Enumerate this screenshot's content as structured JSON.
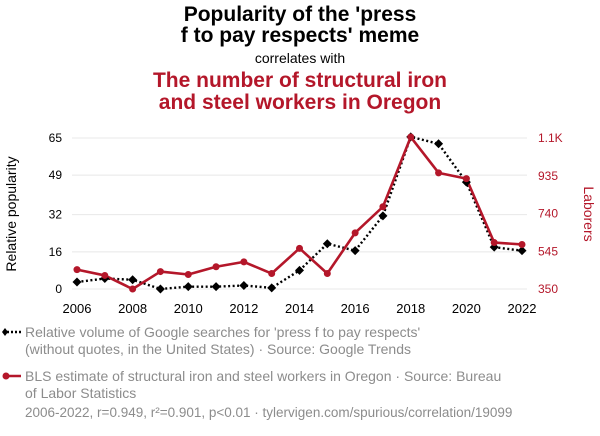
{
  "header": {
    "title_line1": "Popularity of the 'press",
    "title_line2": "f to pay respects' meme",
    "subtitle": "correlates with",
    "title2_line1": "The number of structural iron",
    "title2_line2": "and steel workers in Oregon"
  },
  "colors": {
    "series1": "#000000",
    "series2": "#b4172a",
    "grid": "#e8e8e8"
  },
  "chart_data": {
    "type": "line",
    "x": [
      2006,
      2007,
      2008,
      2009,
      2010,
      2011,
      2012,
      2013,
      2014,
      2015,
      2016,
      2017,
      2018,
      2019,
      2020,
      2021,
      2022
    ],
    "x_ticks": [
      "2006",
      "2008",
      "2010",
      "2012",
      "2014",
      "2016",
      "2018",
      "2020",
      "2022"
    ],
    "left_axis": {
      "label": "Relative popularity",
      "ticks": [
        "65",
        "49",
        "32",
        "16",
        "0"
      ],
      "tick_values": [
        65,
        49,
        32,
        16,
        0
      ],
      "ylim": [
        0,
        65
      ]
    },
    "right_axis": {
      "label": "Laborers",
      "ticks": [
        "1.1K",
        "935",
        "740",
        "545",
        "350"
      ],
      "tick_values": [
        1130,
        935,
        740,
        545,
        350
      ],
      "ylim": [
        350,
        1130
      ]
    },
    "series": [
      {
        "name": "Relative volume of Google searches for 'press f to pay respects' (without quotes, in the United States) · Source: Google Trends",
        "axis": "left",
        "style": "dotted",
        "marker": "diamond",
        "values": [
          3,
          4.5,
          4,
          0,
          1,
          1,
          1.5,
          0.5,
          8,
          19.5,
          16.5,
          31.5,
          65.5,
          62.5,
          46,
          18,
          16.5
        ]
      },
      {
        "name": "BLS estimate of structural iron and steel workers in Oregon · Source: Bureau of Labor Statistics",
        "axis": "right",
        "style": "solid",
        "marker": "circle",
        "values": [
          450,
          420,
          350,
          440,
          425,
          465,
          490,
          430,
          560,
          430,
          640,
          775,
          1135,
          950,
          920,
          590,
          580
        ]
      }
    ]
  },
  "legend": {
    "item1_line1": "Relative volume of Google searches for 'press f to pay respects'",
    "item1_line2": "(without quotes, in the United States) · Source: Google Trends",
    "item2_line1": "BLS estimate of structural iron and steel workers in Oregon · Source: Bureau",
    "item2_line2": "of Labor Statistics"
  },
  "footer": "2006-2022, r=0.949, r²=0.901, p<0.01 · tylervigen.com/spurious/correlation/19099"
}
